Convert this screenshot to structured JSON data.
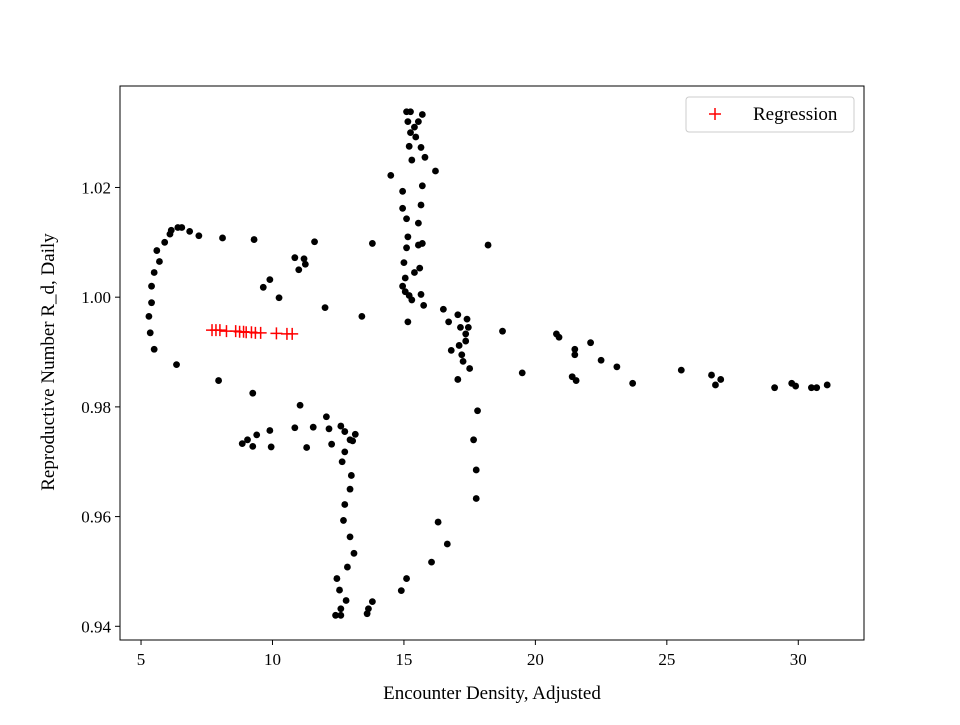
{
  "chart_data": {
    "type": "scatter",
    "title": "",
    "xlabel": "Encounter Density, Adjusted",
    "ylabel": "Reproductive Number R_d, Daily",
    "xlim": [
      4.2,
      32.5
    ],
    "ylim": [
      0.9375,
      1.0385
    ],
    "xticks": [
      5,
      10,
      15,
      20,
      25,
      30
    ],
    "yticks": [
      0.94,
      0.96,
      0.98,
      1.0,
      1.02
    ],
    "xtick_labels": [
      "5",
      "10",
      "15",
      "20",
      "25",
      "30"
    ],
    "ytick_labels": [
      "0.94",
      "0.96",
      "0.98",
      "1.00",
      "1.02"
    ],
    "grid": false,
    "legend": {
      "position": "top-right",
      "entries": [
        "Regression"
      ]
    },
    "series": [
      {
        "marker": "circle",
        "color": "#000000",
        "points": [
          [
            5.35,
            0.9935
          ],
          [
            5.3,
            0.9965
          ],
          [
            5.4,
            0.999
          ],
          [
            5.4,
            1.002
          ],
          [
            5.5,
            1.0045
          ],
          [
            5.6,
            1.0085
          ],
          [
            5.7,
            1.0065
          ],
          [
            5.9,
            1.01
          ],
          [
            6.1,
            1.0115
          ],
          [
            6.15,
            1.0122
          ],
          [
            6.4,
            1.0127
          ],
          [
            6.55,
            1.0127
          ],
          [
            6.85,
            1.012
          ],
          [
            7.2,
            1.0112
          ],
          [
            8.1,
            1.0108
          ],
          [
            9.3,
            1.0105
          ],
          [
            5.5,
            0.9905
          ],
          [
            6.35,
            0.9877
          ],
          [
            7.95,
            0.9848
          ],
          [
            9.65,
            1.0018
          ],
          [
            9.9,
            1.0032
          ],
          [
            10.25,
            0.9999
          ],
          [
            10.85,
            1.0072
          ],
          [
            11.0,
            1.005
          ],
          [
            11.2,
            1.007
          ],
          [
            11.25,
            1.006
          ],
          [
            11.6,
            1.0101
          ],
          [
            12.0,
            0.9981
          ],
          [
            13.4,
            0.9965
          ],
          [
            13.8,
            1.0098
          ],
          [
            9.25,
            0.9825
          ],
          [
            11.05,
            0.9803
          ],
          [
            12.05,
            0.9782
          ],
          [
            8.85,
            0.9733
          ],
          [
            9.05,
            0.974
          ],
          [
            9.25,
            0.9728
          ],
          [
            9.4,
            0.9749
          ],
          [
            9.9,
            0.9757
          ],
          [
            9.95,
            0.9727
          ],
          [
            10.85,
            0.9762
          ],
          [
            11.3,
            0.9726
          ],
          [
            11.55,
            0.9763
          ],
          [
            12.15,
            0.976
          ],
          [
            12.25,
            0.9732
          ],
          [
            12.6,
            0.9765
          ],
          [
            12.75,
            0.9755
          ],
          [
            12.95,
            0.974
          ],
          [
            13.15,
            0.975
          ],
          [
            13.05,
            0.9738
          ],
          [
            12.65,
            0.97
          ],
          [
            12.75,
            0.9718
          ],
          [
            13.0,
            0.9675
          ],
          [
            12.95,
            0.965
          ],
          [
            12.75,
            0.9622
          ],
          [
            12.7,
            0.9593
          ],
          [
            12.95,
            0.9563
          ],
          [
            13.1,
            0.9533
          ],
          [
            12.85,
            0.9508
          ],
          [
            12.45,
            0.9487
          ],
          [
            12.55,
            0.9466
          ],
          [
            12.8,
            0.9447
          ],
          [
            12.6,
            0.9432
          ],
          [
            12.4,
            0.942
          ],
          [
            12.6,
            0.942
          ],
          [
            13.6,
            0.9423
          ],
          [
            13.65,
            0.9432
          ],
          [
            13.8,
            0.9445
          ],
          [
            15.1,
            1.0338
          ],
          [
            15.25,
            1.0338
          ],
          [
            15.7,
            1.0333
          ],
          [
            15.15,
            1.032
          ],
          [
            15.55,
            1.032
          ],
          [
            15.4,
            1.031
          ],
          [
            15.25,
            1.03
          ],
          [
            15.45,
            1.0292
          ],
          [
            15.2,
            1.0275
          ],
          [
            15.65,
            1.0273
          ],
          [
            15.8,
            1.0255
          ],
          [
            15.3,
            1.025
          ],
          [
            14.5,
            1.0222
          ],
          [
            16.2,
            1.023
          ],
          [
            15.7,
            1.0203
          ],
          [
            14.95,
            1.0193
          ],
          [
            14.95,
            1.0162
          ],
          [
            15.65,
            1.0168
          ],
          [
            15.1,
            1.0143
          ],
          [
            15.55,
            1.0135
          ],
          [
            15.15,
            1.011
          ],
          [
            15.7,
            1.0098
          ],
          [
            15.1,
            1.009
          ],
          [
            15.55,
            1.0095
          ],
          [
            15.0,
            1.0063
          ],
          [
            15.6,
            1.0053
          ],
          [
            15.05,
            1.0035
          ],
          [
            15.4,
            1.0045
          ],
          [
            14.95,
            1.002
          ],
          [
            15.05,
            1.001
          ],
          [
            15.2,
            1.0003
          ],
          [
            15.65,
            1.0005
          ],
          [
            15.75,
            0.9985
          ],
          [
            15.15,
            0.9955
          ],
          [
            15.3,
            0.9995
          ],
          [
            16.5,
            0.9978
          ],
          [
            16.7,
            0.9955
          ],
          [
            17.05,
            0.9968
          ],
          [
            17.15,
            0.9945
          ],
          [
            17.35,
            0.9933
          ],
          [
            17.4,
            0.996
          ],
          [
            17.45,
            0.9945
          ],
          [
            17.35,
            0.992
          ],
          [
            16.8,
            0.9903
          ],
          [
            17.1,
            0.9912
          ],
          [
            17.2,
            0.9895
          ],
          [
            17.25,
            0.9883
          ],
          [
            17.5,
            0.987
          ],
          [
            17.05,
            0.985
          ],
          [
            18.2,
            1.0095
          ],
          [
            18.75,
            0.9938
          ],
          [
            19.5,
            0.9862
          ],
          [
            20.8,
            0.9933
          ],
          [
            20.9,
            0.9927
          ],
          [
            21.5,
            0.9905
          ],
          [
            21.5,
            0.9895
          ],
          [
            21.4,
            0.9855
          ],
          [
            21.55,
            0.9848
          ],
          [
            22.1,
            0.9917
          ],
          [
            22.5,
            0.9885
          ],
          [
            23.1,
            0.9873
          ],
          [
            23.7,
            0.9843
          ],
          [
            25.55,
            0.9867
          ],
          [
            26.7,
            0.9858
          ],
          [
            26.85,
            0.984
          ],
          [
            27.05,
            0.985
          ],
          [
            29.1,
            0.9835
          ],
          [
            29.75,
            0.9843
          ],
          [
            29.9,
            0.9838
          ],
          [
            30.5,
            0.9835
          ],
          [
            30.7,
            0.9835
          ],
          [
            31.1,
            0.984
          ],
          [
            17.8,
            0.9793
          ],
          [
            17.65,
            0.974
          ],
          [
            17.75,
            0.9685
          ],
          [
            17.75,
            0.9633
          ],
          [
            16.3,
            0.959
          ],
          [
            16.65,
            0.955
          ],
          [
            16.05,
            0.9517
          ],
          [
            15.1,
            0.9487
          ],
          [
            14.9,
            0.9465
          ]
        ]
      },
      {
        "name": "Regression",
        "marker": "plus",
        "color": "#ff0000",
        "points": [
          [
            7.7,
            0.994
          ],
          [
            7.85,
            0.994
          ],
          [
            8.0,
            0.994
          ],
          [
            8.25,
            0.9938
          ],
          [
            8.6,
            0.9938
          ],
          [
            8.75,
            0.9937
          ],
          [
            8.9,
            0.9937
          ],
          [
            9.0,
            0.9936
          ],
          [
            9.2,
            0.9936
          ],
          [
            9.35,
            0.9935
          ],
          [
            9.55,
            0.9935
          ],
          [
            10.15,
            0.9934
          ],
          [
            10.55,
            0.9933
          ],
          [
            10.75,
            0.9933
          ]
        ]
      }
    ]
  }
}
